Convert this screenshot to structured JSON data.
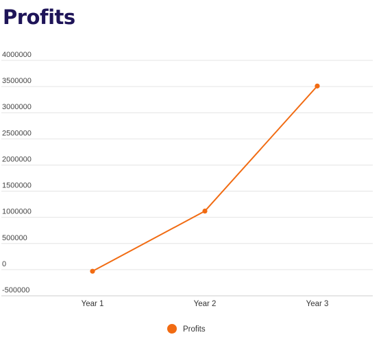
{
  "chart_data": {
    "type": "line",
    "title": "Profits",
    "categories": [
      "Year 1",
      "Year 2",
      "Year 3"
    ],
    "series": [
      {
        "name": "Profits",
        "color": "#f16b12",
        "values": [
          -30000,
          1120000,
          3510000
        ]
      }
    ],
    "ylim": [
      -500000,
      4000000
    ],
    "yticks": [
      "-500000",
      "0",
      "500000",
      "1000000",
      "1500000",
      "2000000",
      "2500000",
      "3000000",
      "3500000",
      "4000000"
    ],
    "grid": true,
    "legend": "bottom-center"
  }
}
